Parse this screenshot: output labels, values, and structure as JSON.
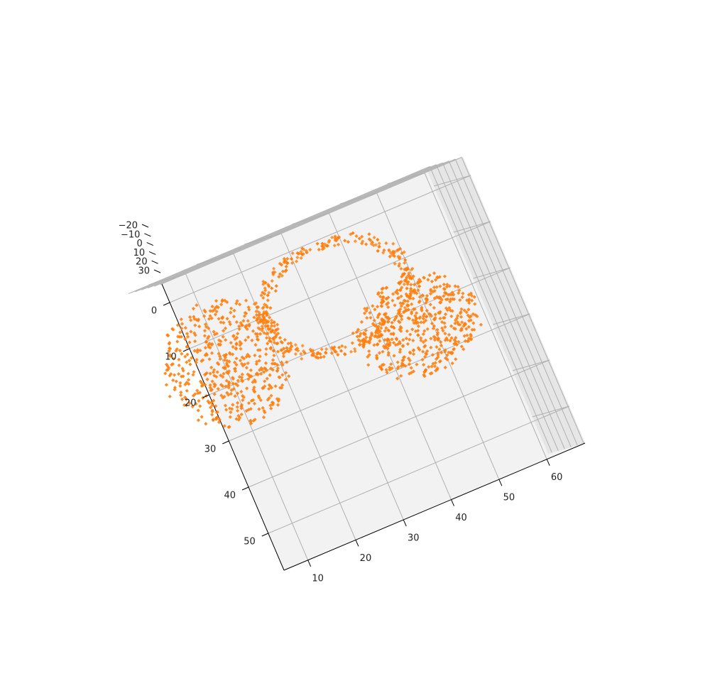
{
  "chart_data": {
    "type": "scatter3d",
    "title": "",
    "xlabel": "",
    "ylabel": "",
    "zlabel": "",
    "grid": true,
    "marker": "diamond",
    "colors": {
      "points": "#ff7f0e",
      "pane": "#f2f2f2",
      "grid": "#b0b0b0",
      "axis": "#000000"
    },
    "xlim": [
      5,
      68
    ],
    "ylim": [
      -4,
      58
    ],
    "zlim": [
      -22,
      36
    ],
    "x_ticks": [
      "10",
      "20",
      "30",
      "40",
      "50",
      "60"
    ],
    "y_ticks": [
      "0",
      "10",
      "20",
      "30",
      "40",
      "50"
    ],
    "z_ticks": [
      "−20",
      "−10",
      "0",
      "10",
      "20",
      "30"
    ],
    "shape": {
      "description_free": true,
      "lobe_left": {
        "center": [
          14,
          16
        ],
        "rx": 12,
        "ry": 13
      },
      "ring_top": {
        "center": [
          37,
          12
        ],
        "rx": 15,
        "ry": 11
      },
      "lobe_right": {
        "center": [
          51,
          24
        ],
        "rx": 12,
        "ry": 10
      }
    }
  }
}
